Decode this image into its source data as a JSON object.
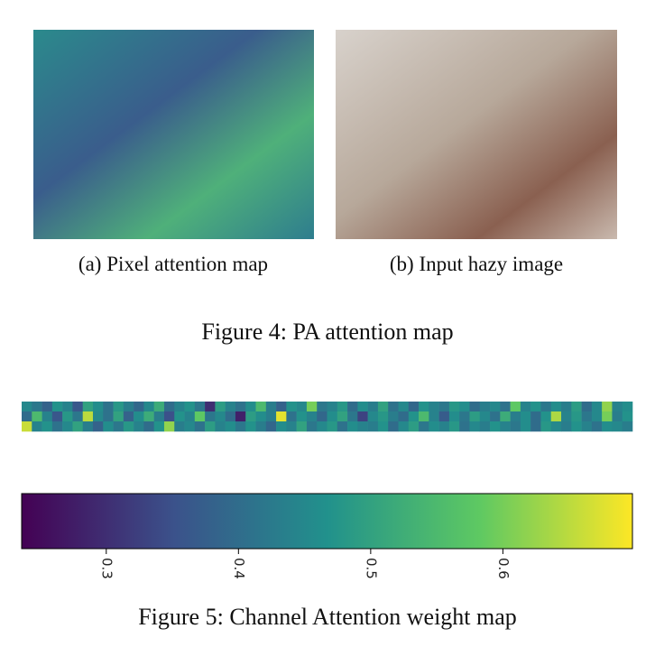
{
  "figure4": {
    "subcaptions": [
      "(a) Pixel attention map",
      "(b) Input hazy image"
    ],
    "caption": "Figure 4: PA attention map"
  },
  "figure5": {
    "caption": "Figure 5: Channel Attention weight map",
    "heatmap": {
      "values": [
        [
          0.45,
          0.42,
          0.38,
          0.47,
          0.44,
          0.36,
          0.5,
          0.46,
          0.41,
          0.48,
          0.43,
          0.39,
          0.45,
          0.52,
          0.4,
          0.44,
          0.47,
          0.42,
          0.3,
          0.49,
          0.44,
          0.41,
          0.46,
          0.55,
          0.43,
          0.38,
          0.47,
          0.45,
          0.6,
          0.42,
          0.44,
          0.48,
          0.4,
          0.46,
          0.43,
          0.5,
          0.41,
          0.45,
          0.39,
          0.47,
          0.44,
          0.42,
          0.48,
          0.46,
          0.4,
          0.43,
          0.45,
          0.41,
          0.58,
          0.44,
          0.47,
          0.42,
          0.46,
          0.43,
          0.49,
          0.4,
          0.45,
          0.62,
          0.44,
          0.46
        ],
        [
          0.4,
          0.55,
          0.44,
          0.36,
          0.48,
          0.42,
          0.65,
          0.45,
          0.41,
          0.5,
          0.38,
          0.46,
          0.52,
          0.43,
          0.35,
          0.47,
          0.44,
          0.58,
          0.42,
          0.45,
          0.4,
          0.28,
          0.49,
          0.46,
          0.43,
          0.68,
          0.41,
          0.47,
          0.44,
          0.39,
          0.46,
          0.5,
          0.42,
          0.33,
          0.45,
          0.48,
          0.43,
          0.4,
          0.47,
          0.55,
          0.44,
          0.37,
          0.46,
          0.42,
          0.49,
          0.45,
          0.41,
          0.52,
          0.43,
          0.46,
          0.4,
          0.47,
          0.64,
          0.44,
          0.48,
          0.42,
          0.45,
          0.6,
          0.43,
          0.47
        ],
        [
          0.66,
          0.44,
          0.47,
          0.41,
          0.45,
          0.5,
          0.43,
          0.38,
          0.46,
          0.42,
          0.48,
          0.44,
          0.4,
          0.47,
          0.62,
          0.43,
          0.45,
          0.41,
          0.49,
          0.44,
          0.46,
          0.42,
          0.47,
          0.43,
          0.39,
          0.46,
          0.44,
          0.5,
          0.42,
          0.45,
          0.48,
          0.41,
          0.46,
          0.44,
          0.43,
          0.47,
          0.4,
          0.45,
          0.49,
          0.42,
          0.46,
          0.44,
          0.48,
          0.41,
          0.45,
          0.43,
          0.47,
          0.44,
          0.42,
          0.46,
          0.4,
          0.48,
          0.45,
          0.43,
          0.47,
          0.44,
          0.41,
          0.46,
          0.45,
          0.43
        ]
      ],
      "colorbar": {
        "lim": [
          0.236,
          0.698
        ],
        "ticks": [
          0.3,
          0.4,
          0.5,
          0.6
        ]
      }
    }
  }
}
